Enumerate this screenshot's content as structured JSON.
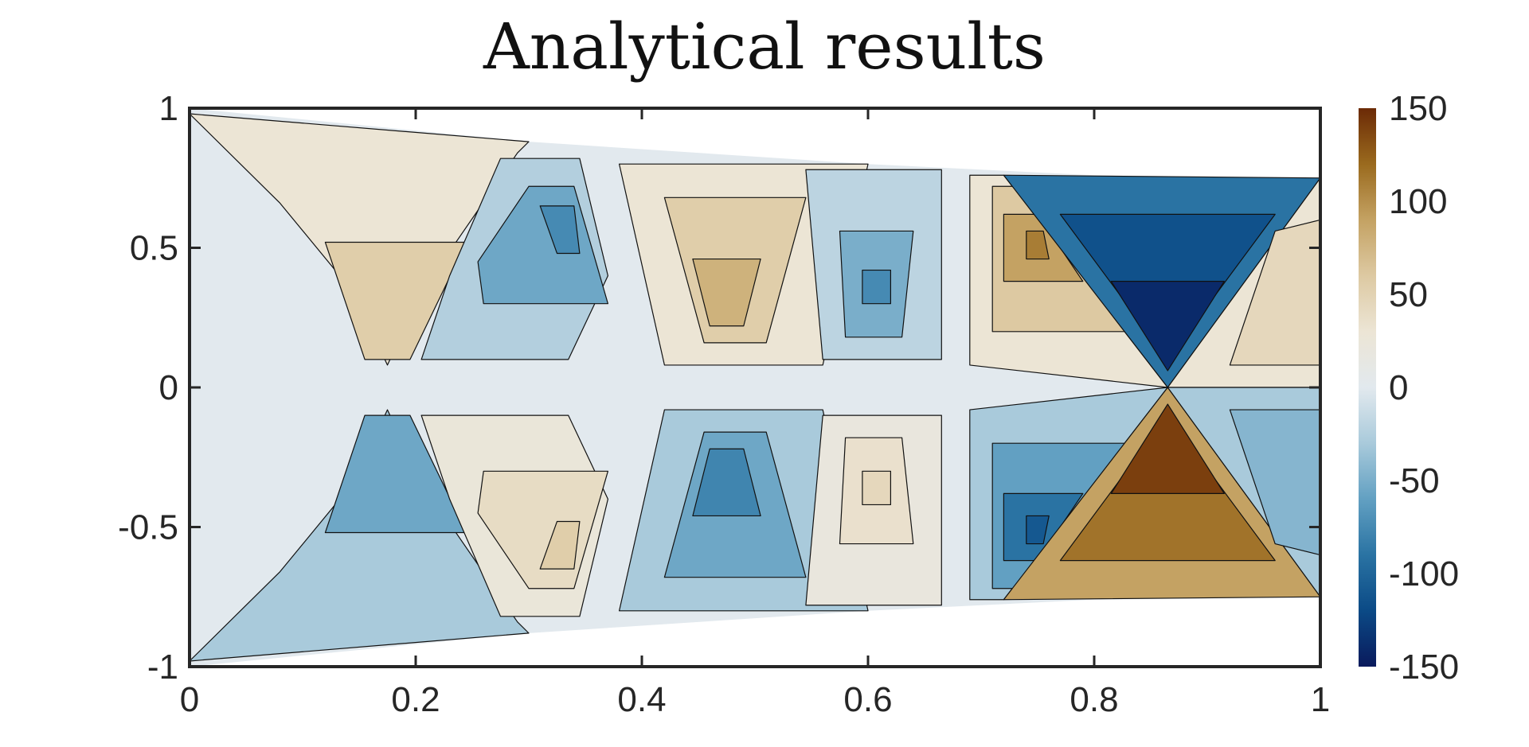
{
  "chart_data": {
    "type": "heatmap",
    "subtype": "filled-contour",
    "title": "Analytical results",
    "xlabel": "",
    "ylabel": "",
    "xlim": [
      0,
      1
    ],
    "ylim": [
      -1,
      1
    ],
    "x_ticks": [
      0,
      0.2,
      0.4,
      0.6,
      0.8,
      1
    ],
    "x_tick_labels": [
      "0",
      "0.2",
      "0.4",
      "0.6",
      "0.8",
      "1"
    ],
    "y_ticks": [
      1,
      0.5,
      0,
      -0.5,
      -1
    ],
    "y_tick_labels": [
      "1",
      "0.5",
      "0",
      "-0.5",
      "-1"
    ],
    "colorbar": {
      "range": [
        -150,
        150
      ],
      "ticks": [
        150,
        100,
        50,
        0,
        -50,
        -100,
        -150
      ],
      "tick_labels": [
        "150",
        "100",
        "50",
        "0",
        "-50",
        "-100",
        "-150"
      ],
      "colormap": [
        "#0a1a5c",
        "#0b4a86",
        "#2a73a3",
        "#62a0c2",
        "#a9cadb",
        "#e2e9ee",
        "#ece5d5",
        "#ddc9a2",
        "#c4a263",
        "#9a6a1e",
        "#6b2a06"
      ]
    },
    "domain_outline": {
      "upper_edge": [
        [
          0,
          1
        ],
        [
          0.3,
          0.88
        ],
        [
          0.6,
          0.8
        ],
        [
          0.8,
          0.76
        ],
        [
          1,
          0.75
        ]
      ],
      "lower_edge": [
        [
          0,
          -1
        ],
        [
          0.3,
          -0.88
        ],
        [
          0.6,
          -0.8
        ],
        [
          0.8,
          -0.76
        ],
        [
          1,
          -0.75
        ]
      ]
    },
    "regions": [
      {
        "polygon": [
          [
            0,
            0.98
          ],
          [
            0.08,
            0.66
          ],
          [
            0.145,
            0.34
          ],
          [
            0.175,
            0.08
          ],
          [
            0.205,
            0.34
          ],
          [
            0.29,
            0.84
          ],
          [
            0.3,
            0.88
          ]
        ],
        "value": 30
      },
      {
        "polygon": [
          [
            0.12,
            0.52
          ],
          [
            0.155,
            0.1
          ],
          [
            0.195,
            0.1
          ],
          [
            0.245,
            0.52
          ]
        ],
        "value": 55
      },
      {
        "polygon": [
          [
            0.275,
            0.82
          ],
          [
            0.23,
            0.4
          ],
          [
            0.205,
            0.1
          ],
          [
            0.335,
            0.1
          ],
          [
            0.37,
            0.4
          ],
          [
            0.345,
            0.82
          ]
        ],
        "value": -25
      },
      {
        "polygon": [
          [
            0.255,
            0.45
          ],
          [
            0.3,
            0.72
          ],
          [
            0.34,
            0.72
          ],
          [
            0.37,
            0.3
          ],
          [
            0.26,
            0.3
          ]
        ],
        "value": -55
      },
      {
        "polygon": [
          [
            0.31,
            0.65
          ],
          [
            0.325,
            0.48
          ],
          [
            0.345,
            0.48
          ],
          [
            0.34,
            0.65
          ]
        ],
        "value": -75
      },
      {
        "polygon": [
          [
            0.38,
            0.8
          ],
          [
            0.6,
            0.8
          ],
          [
            0.56,
            0.08
          ],
          [
            0.42,
            0.08
          ]
        ],
        "value": 30
      },
      {
        "polygon": [
          [
            0.42,
            0.68
          ],
          [
            0.545,
            0.68
          ],
          [
            0.51,
            0.16
          ],
          [
            0.455,
            0.16
          ]
        ],
        "value": 55
      },
      {
        "polygon": [
          [
            0.445,
            0.46
          ],
          [
            0.505,
            0.46
          ],
          [
            0.49,
            0.22
          ],
          [
            0.46,
            0.22
          ]
        ],
        "value": 78
      },
      {
        "polygon": [
          [
            0.545,
            0.78
          ],
          [
            0.665,
            0.78
          ],
          [
            0.665,
            0.1
          ],
          [
            0.56,
            0.1
          ]
        ],
        "value": -20
      },
      {
        "polygon": [
          [
            0.575,
            0.56
          ],
          [
            0.64,
            0.56
          ],
          [
            0.63,
            0.18
          ],
          [
            0.58,
            0.18
          ]
        ],
        "value": -50
      },
      {
        "polygon": [
          [
            0.595,
            0.42
          ],
          [
            0.62,
            0.42
          ],
          [
            0.62,
            0.3
          ],
          [
            0.595,
            0.3
          ]
        ],
        "value": -75
      },
      {
        "polygon": [
          [
            0.69,
            0.76
          ],
          [
            0.72,
            0.76
          ],
          [
            0.865,
            0
          ],
          [
            0.69,
            0.08
          ]
        ],
        "value": 30
      },
      {
        "polygon": [
          [
            0.71,
            0.72
          ],
          [
            0.735,
            0.72
          ],
          [
            0.83,
            0.2
          ],
          [
            0.71,
            0.2
          ]
        ],
        "value": 60
      },
      {
        "polygon": [
          [
            0.72,
            0.62
          ],
          [
            0.75,
            0.62
          ],
          [
            0.79,
            0.38
          ],
          [
            0.72,
            0.38
          ]
        ],
        "value": 90
      },
      {
        "polygon": [
          [
            0.74,
            0.56
          ],
          [
            0.755,
            0.56
          ],
          [
            0.76,
            0.46
          ],
          [
            0.74,
            0.46
          ]
        ],
        "value": 110
      },
      {
        "polygon": [
          [
            0.72,
            0.76
          ],
          [
            1,
            0.75
          ],
          [
            0.865,
            0
          ]
        ],
        "value": -90
      },
      {
        "polygon": [
          [
            0.77,
            0.62
          ],
          [
            0.96,
            0.62
          ],
          [
            0.865,
            0.1
          ]
        ],
        "value": -115
      },
      {
        "polygon": [
          [
            0.815,
            0.38
          ],
          [
            0.915,
            0.38
          ],
          [
            0.865,
            0.06
          ]
        ],
        "value": -140
      },
      {
        "polygon": [
          [
            1,
            0.75
          ],
          [
            1,
            0
          ],
          [
            0.865,
            0
          ]
        ],
        "value": 30
      },
      {
        "polygon": [
          [
            0.96,
            0.56
          ],
          [
            1,
            0.6
          ],
          [
            1,
            0.08
          ],
          [
            0.92,
            0.08
          ]
        ],
        "value": 45
      },
      {
        "polygon": [
          [
            0,
            -0.98
          ],
          [
            0.08,
            -0.66
          ],
          [
            0.145,
            -0.34
          ],
          [
            0.175,
            -0.08
          ],
          [
            0.205,
            -0.34
          ],
          [
            0.29,
            -0.84
          ],
          [
            0.3,
            -0.88
          ]
        ],
        "value": -30
      },
      {
        "polygon": [
          [
            0.12,
            -0.52
          ],
          [
            0.155,
            -0.1
          ],
          [
            0.195,
            -0.1
          ],
          [
            0.245,
            -0.52
          ]
        ],
        "value": -55
      },
      {
        "polygon": [
          [
            0.275,
            -0.82
          ],
          [
            0.23,
            -0.4
          ],
          [
            0.205,
            -0.1
          ],
          [
            0.335,
            -0.1
          ],
          [
            0.37,
            -0.4
          ],
          [
            0.345,
            -0.82
          ]
        ],
        "value": 25
      },
      {
        "polygon": [
          [
            0.255,
            -0.45
          ],
          [
            0.3,
            -0.72
          ],
          [
            0.34,
            -0.72
          ],
          [
            0.37,
            -0.3
          ],
          [
            0.26,
            -0.3
          ]
        ],
        "value": 40
      },
      {
        "polygon": [
          [
            0.31,
            -0.65
          ],
          [
            0.325,
            -0.48
          ],
          [
            0.345,
            -0.48
          ],
          [
            0.34,
            -0.65
          ]
        ],
        "value": 55
      },
      {
        "polygon": [
          [
            0.38,
            -0.8
          ],
          [
            0.6,
            -0.8
          ],
          [
            0.56,
            -0.08
          ],
          [
            0.42,
            -0.08
          ]
        ],
        "value": -30
      },
      {
        "polygon": [
          [
            0.42,
            -0.68
          ],
          [
            0.545,
            -0.68
          ],
          [
            0.51,
            -0.16
          ],
          [
            0.455,
            -0.16
          ]
        ],
        "value": -55
      },
      {
        "polygon": [
          [
            0.445,
            -0.46
          ],
          [
            0.505,
            -0.46
          ],
          [
            0.49,
            -0.22
          ],
          [
            0.46,
            -0.22
          ]
        ],
        "value": -78
      },
      {
        "polygon": [
          [
            0.545,
            -0.78
          ],
          [
            0.665,
            -0.78
          ],
          [
            0.665,
            -0.1
          ],
          [
            0.56,
            -0.1
          ]
        ],
        "value": 20
      },
      {
        "polygon": [
          [
            0.575,
            -0.56
          ],
          [
            0.64,
            -0.56
          ],
          [
            0.63,
            -0.18
          ],
          [
            0.58,
            -0.18
          ]
        ],
        "value": 35
      },
      {
        "polygon": [
          [
            0.595,
            -0.42
          ],
          [
            0.62,
            -0.42
          ],
          [
            0.62,
            -0.3
          ],
          [
            0.595,
            -0.3
          ]
        ],
        "value": 45
      },
      {
        "polygon": [
          [
            0.69,
            -0.76
          ],
          [
            0.72,
            -0.76
          ],
          [
            0.865,
            0
          ],
          [
            0.69,
            -0.08
          ]
        ],
        "value": -30
      },
      {
        "polygon": [
          [
            0.71,
            -0.72
          ],
          [
            0.735,
            -0.72
          ],
          [
            0.83,
            -0.2
          ],
          [
            0.71,
            -0.2
          ]
        ],
        "value": -60
      },
      {
        "polygon": [
          [
            0.72,
            -0.62
          ],
          [
            0.75,
            -0.62
          ],
          [
            0.79,
            -0.38
          ],
          [
            0.72,
            -0.38
          ]
        ],
        "value": -90
      },
      {
        "polygon": [
          [
            0.74,
            -0.56
          ],
          [
            0.755,
            -0.56
          ],
          [
            0.76,
            -0.46
          ],
          [
            0.74,
            -0.46
          ]
        ],
        "value": -110
      },
      {
        "polygon": [
          [
            0.72,
            -0.76
          ],
          [
            1,
            -0.75
          ],
          [
            0.865,
            0
          ]
        ],
        "value": 90
      },
      {
        "polygon": [
          [
            0.77,
            -0.62
          ],
          [
            0.96,
            -0.62
          ],
          [
            0.865,
            -0.1
          ]
        ],
        "value": 115
      },
      {
        "polygon": [
          [
            0.815,
            -0.38
          ],
          [
            0.915,
            -0.38
          ],
          [
            0.865,
            -0.06
          ]
        ],
        "value": 140
      },
      {
        "polygon": [
          [
            1,
            -0.75
          ],
          [
            1,
            0
          ],
          [
            0.865,
            0
          ]
        ],
        "value": -30
      },
      {
        "polygon": [
          [
            0.96,
            -0.56
          ],
          [
            1,
            -0.6
          ],
          [
            1,
            -0.08
          ],
          [
            0.92,
            -0.08
          ]
        ],
        "value": -45
      }
    ],
    "grid": false,
    "legend": "none",
    "colorbar_position": "right"
  }
}
